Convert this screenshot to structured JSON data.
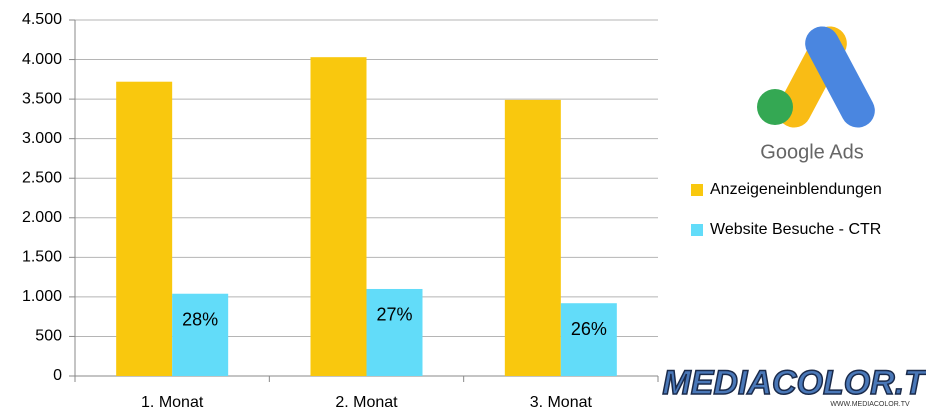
{
  "chart_data": {
    "type": "bar",
    "categories": [
      "1. Monat",
      "2. Monat",
      "3. Monat"
    ],
    "series": [
      {
        "name": "Anzeigeneinblendungen",
        "color": "#f9c80e",
        "values": [
          3720,
          4030,
          3490
        ]
      },
      {
        "name": "Website Besuche - CTR",
        "color": "#62dcf9",
        "values": [
          1040,
          1100,
          920
        ]
      }
    ],
    "annotations": [
      "28%",
      "27%",
      "26%"
    ],
    "ylim": [
      0,
      4500
    ],
    "yticks": [
      0,
      500,
      {
        "value": 1000,
        "label": "1.000"
      },
      {
        "value": 1500,
        "label": "1.500"
      },
      {
        "value": 2000,
        "label": "2.000"
      },
      {
        "value": 2500,
        "label": "2.500"
      },
      {
        "value": 3000,
        "label": "3.000"
      },
      {
        "value": 3500,
        "label": "3.500"
      },
      {
        "value": 4000,
        "label": "4.000"
      },
      {
        "value": 4500,
        "label": "4.500"
      }
    ],
    "grid": true,
    "legend": "right"
  },
  "logos": {
    "google": "Google Ads",
    "brand": "MEDIACOLOR.TV",
    "url": "WWW.MEDIACOLOR.TV"
  }
}
